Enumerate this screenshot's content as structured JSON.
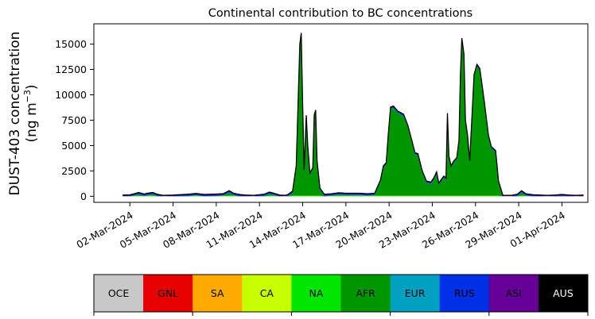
{
  "chart_data": {
    "type": "area",
    "stacked": true,
    "title": "Continental contribution to BC concentrations",
    "ylabel_line1": "DUST-403 concentration",
    "ylabel_line2": "(ng m",
    "ylabel_sup": "−3",
    "ylabel_close": ")",
    "y_ticks": [
      "0",
      "2500",
      "5000",
      "7500",
      "10000",
      "12500",
      "15000"
    ],
    "y_tick_values": [
      0,
      2500,
      5000,
      7500,
      10000,
      12500,
      15000
    ],
    "ylim": [
      -600,
      17000
    ],
    "x_ticks": [
      "02-Mar-2024",
      "05-Mar-2024",
      "08-Mar-2024",
      "11-Mar-2024",
      "14-Mar-2024",
      "17-Mar-2024",
      "20-Mar-2024",
      "23-Mar-2024",
      "26-Mar-2024",
      "29-Mar-2024",
      "01-Apr-2024"
    ],
    "x_tick_days": [
      2,
      5,
      8,
      11,
      14,
      17,
      20,
      23,
      26,
      29,
      32
    ],
    "xlim_days": [
      -0.5,
      33.8
    ],
    "grid": false,
    "legend_position": "bottom",
    "series_colors": {
      "OCE": "#c8c8c8",
      "GNL": "#e60000",
      "SA": "#ffaa00",
      "CA": "#c8ff00",
      "NA": "#00e600",
      "AFR": "#009600",
      "EUR": "#00a0c0",
      "RUS": "#0030e6",
      "ASI": "#660099",
      "AUS": "#000000"
    },
    "legend": [
      {
        "name": "OCE",
        "color": "#c8c8c8",
        "text_color": "#000000"
      },
      {
        "name": "GNL",
        "color": "#e60000",
        "text_color": "#000000"
      },
      {
        "name": "SA",
        "color": "#ffaa00",
        "text_color": "#000000"
      },
      {
        "name": "CA",
        "color": "#c8ff00",
        "text_color": "#000000"
      },
      {
        "name": "NA",
        "color": "#00e600",
        "text_color": "#000000"
      },
      {
        "name": "AFR",
        "color": "#009600",
        "text_color": "#000000"
      },
      {
        "name": "EUR",
        "color": "#00a0c0",
        "text_color": "#000000"
      },
      {
        "name": "RUS",
        "color": "#0030e6",
        "text_color": "#000000"
      },
      {
        "name": "ASI",
        "color": "#660099",
        "text_color": "#000000"
      },
      {
        "name": "AUS",
        "color": "#000000",
        "text_color": "#ffffff"
      }
    ],
    "total_series": [
      [
        1.5,
        120
      ],
      [
        2.0,
        140
      ],
      [
        2.3,
        250
      ],
      [
        2.6,
        380
      ],
      [
        3.0,
        220
      ],
      [
        3.2,
        300
      ],
      [
        3.6,
        380
      ],
      [
        3.9,
        200
      ],
      [
        4.3,
        100
      ],
      [
        5.0,
        120
      ],
      [
        6.0,
        200
      ],
      [
        6.6,
        280
      ],
      [
        7.2,
        180
      ],
      [
        8.0,
        220
      ],
      [
        8.5,
        260
      ],
      [
        8.9,
        560
      ],
      [
        9.2,
        300
      ],
      [
        9.6,
        180
      ],
      [
        10.0,
        120
      ],
      [
        10.6,
        100
      ],
      [
        11.3,
        200
      ],
      [
        11.7,
        420
      ],
      [
        12.0,
        300
      ],
      [
        12.4,
        120
      ],
      [
        12.8,
        100
      ],
      [
        13.0,
        200
      ],
      [
        13.3,
        500
      ],
      [
        13.55,
        3000
      ],
      [
        13.8,
        15000
      ],
      [
        13.9,
        16100
      ],
      [
        14.0,
        9000
      ],
      [
        14.1,
        2600
      ],
      [
        14.25,
        8000
      ],
      [
        14.35,
        5000
      ],
      [
        14.5,
        2300
      ],
      [
        14.7,
        2800
      ],
      [
        14.8,
        8000
      ],
      [
        14.9,
        8500
      ],
      [
        15.0,
        3500
      ],
      [
        15.2,
        800
      ],
      [
        15.5,
        200
      ],
      [
        16.0,
        250
      ],
      [
        16.5,
        350
      ],
      [
        17.0,
        300
      ],
      [
        17.5,
        300
      ],
      [
        18.0,
        300
      ],
      [
        18.5,
        250
      ],
      [
        19.0,
        300
      ],
      [
        19.4,
        1600
      ],
      [
        19.6,
        3000
      ],
      [
        19.8,
        3300
      ],
      [
        19.95,
        6200
      ],
      [
        20.1,
        8800
      ],
      [
        20.3,
        8900
      ],
      [
        20.6,
        8400
      ],
      [
        21.0,
        8100
      ],
      [
        21.3,
        7000
      ],
      [
        21.6,
        5400
      ],
      [
        21.8,
        4300
      ],
      [
        22.0,
        4200
      ],
      [
        22.3,
        2500
      ],
      [
        22.6,
        1500
      ],
      [
        22.9,
        1400
      ],
      [
        23.1,
        1800
      ],
      [
        23.3,
        2400
      ],
      [
        23.45,
        1300
      ],
      [
        23.6,
        1600
      ],
      [
        23.8,
        2000
      ],
      [
        23.95,
        1800
      ],
      [
        24.05,
        8200
      ],
      [
        24.15,
        4000
      ],
      [
        24.3,
        3000
      ],
      [
        24.5,
        3500
      ],
      [
        24.7,
        3800
      ],
      [
        24.85,
        5500
      ],
      [
        24.95,
        12000
      ],
      [
        25.05,
        15600
      ],
      [
        25.2,
        14000
      ],
      [
        25.3,
        7500
      ],
      [
        25.45,
        6000
      ],
      [
        25.6,
        3500
      ],
      [
        25.9,
        12000
      ],
      [
        26.1,
        13000
      ],
      [
        26.3,
        12600
      ],
      [
        26.6,
        9500
      ],
      [
        26.9,
        6000
      ],
      [
        27.1,
        4900
      ],
      [
        27.4,
        4500
      ],
      [
        27.6,
        1500
      ],
      [
        27.9,
        100
      ],
      [
        28.5,
        100
      ],
      [
        28.9,
        200
      ],
      [
        29.2,
        550
      ],
      [
        29.5,
        250
      ],
      [
        30.0,
        150
      ],
      [
        30.5,
        120
      ],
      [
        31.0,
        100
      ],
      [
        31.5,
        120
      ],
      [
        32.0,
        180
      ],
      [
        32.5,
        120
      ],
      [
        33.0,
        100
      ],
      [
        33.5,
        120
      ]
    ]
  }
}
